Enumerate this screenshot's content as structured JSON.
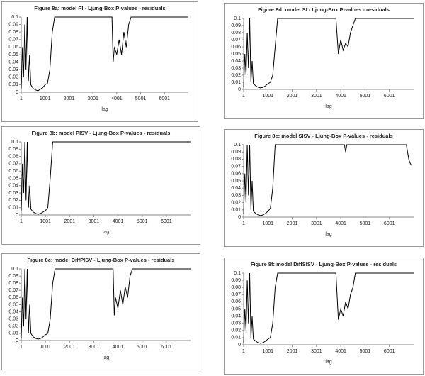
{
  "chart_data": [
    {
      "type": "line",
      "title": "Figure 8a: model PI - Ljung-Box P-values - residuals",
      "xlabel": "lag",
      "color": "#000000",
      "xlim": [
        1,
        7001
      ],
      "ylim": [
        0,
        0.1
      ],
      "xticks": [
        1,
        1001,
        2001,
        3001,
        4001,
        5001,
        6001
      ],
      "yticks": [
        0,
        0.01,
        0.02,
        0.03,
        0.04,
        0.05,
        0.06,
        0.07,
        0.08,
        0.09,
        0.1
      ],
      "x": [
        1,
        50,
        100,
        150,
        200,
        250,
        300,
        350,
        400,
        500,
        600,
        700,
        800,
        900,
        1000,
        1100,
        1200,
        1300,
        1400,
        1500,
        3800,
        3850,
        3900,
        4000,
        4100,
        4200,
        4300,
        4400,
        4500,
        4600,
        4700,
        7000
      ],
      "values": [
        0.005,
        0.06,
        0.02,
        0.09,
        0.03,
        0.1,
        0.015,
        0.05,
        0.01,
        0.005,
        0.003,
        0.002,
        0.004,
        0.006,
        0.01,
        0.012,
        0.03,
        0.08,
        0.1,
        0.1,
        0.1,
        0.04,
        0.06,
        0.05,
        0.07,
        0.05,
        0.08,
        0.06,
        0.09,
        0.1,
        0.1,
        0.1
      ]
    },
    {
      "type": "line",
      "title": "Figure 8d: model SI - Ljung-Box P-values - residuals",
      "xlabel": "lag",
      "color": "#000000",
      "xlim": [
        1,
        7001
      ],
      "ylim": [
        0,
        0.1
      ],
      "xticks": [
        1,
        1001,
        2001,
        3001,
        4001,
        5001,
        6001
      ],
      "yticks": [
        0,
        0.01,
        0.02,
        0.03,
        0.04,
        0.05,
        0.06,
        0.07,
        0.08,
        0.09,
        0.1
      ],
      "x": [
        1,
        50,
        100,
        150,
        200,
        250,
        300,
        350,
        400,
        500,
        600,
        700,
        800,
        900,
        1000,
        1100,
        1200,
        1300,
        1400,
        1500,
        3800,
        3900,
        4000,
        4100,
        4200,
        4300,
        4400,
        4500,
        4600,
        4700,
        4800,
        7000
      ],
      "values": [
        0.003,
        0.05,
        0.02,
        0.08,
        0.03,
        0.1,
        0.01,
        0.04,
        0.008,
        0.005,
        0.003,
        0.002,
        0.003,
        0.005,
        0.008,
        0.01,
        0.02,
        0.06,
        0.1,
        0.1,
        0.1,
        0.05,
        0.07,
        0.055,
        0.065,
        0.06,
        0.08,
        0.09,
        0.1,
        0.1,
        0.1,
        0.1
      ]
    },
    {
      "type": "line",
      "title": "Figure 8b: model PISV - Ljung-Box P-values - residuals",
      "xlabel": "lag",
      "color": "#000000",
      "xlim": [
        1,
        7001
      ],
      "ylim": [
        0,
        0.1
      ],
      "xticks": [
        1,
        1001,
        2001,
        3001,
        4001,
        5001,
        6001
      ],
      "yticks": [
        0,
        0.01,
        0.02,
        0.03,
        0.04,
        0.05,
        0.06,
        0.07,
        0.08,
        0.09,
        0.1
      ],
      "x": [
        1,
        50,
        100,
        150,
        200,
        250,
        300,
        350,
        400,
        500,
        600,
        700,
        800,
        900,
        1000,
        1100,
        1200,
        1300,
        1400,
        7000
      ],
      "values": [
        0.005,
        0.07,
        0.03,
        0.1,
        0.02,
        0.1,
        0.01,
        0.04,
        0.008,
        0.004,
        0.002,
        0.001,
        0.002,
        0.004,
        0.006,
        0.01,
        0.05,
        0.1,
        0.1,
        0.1
      ]
    },
    {
      "type": "line",
      "title": "Figure 8e: model SISV - Ljung-Box P-values - residuals",
      "xlabel": "lag",
      "color": "#000000",
      "xlim": [
        1,
        7001
      ],
      "ylim": [
        0,
        0.1
      ],
      "xticks": [
        1,
        1001,
        2001,
        3001,
        4001,
        5001,
        6001
      ],
      "yticks": [
        0,
        0.01,
        0.02,
        0.03,
        0.04,
        0.05,
        0.06,
        0.07,
        0.08,
        0.09,
        0.1
      ],
      "x": [
        1,
        50,
        100,
        150,
        200,
        250,
        300,
        350,
        400,
        500,
        600,
        700,
        800,
        900,
        1000,
        1100,
        1200,
        1300,
        1400,
        4150,
        4200,
        4250,
        6700,
        6750,
        6800,
        6850,
        6900
      ],
      "values": [
        0.004,
        0.06,
        0.02,
        0.1,
        0.03,
        0.1,
        0.01,
        0.05,
        0.008,
        0.005,
        0.003,
        0.002,
        0.003,
        0.005,
        0.008,
        0.012,
        0.04,
        0.1,
        0.1,
        0.1,
        0.09,
        0.1,
        0.1,
        0.09,
        0.08,
        0.075,
        0.072
      ]
    },
    {
      "type": "line",
      "title": "Figure 8c: model DiffPISV - Ljung-Box P-values - residuals",
      "xlabel": "lag",
      "color": "#000000",
      "xlim": [
        1,
        7001
      ],
      "ylim": [
        0,
        0.1
      ],
      "xticks": [
        1,
        1001,
        2001,
        3001,
        4001,
        5001,
        6001
      ],
      "yticks": [
        0,
        0.01,
        0.02,
        0.03,
        0.04,
        0.05,
        0.06,
        0.07,
        0.08,
        0.09,
        0.1
      ],
      "x": [
        1,
        50,
        100,
        150,
        200,
        250,
        300,
        350,
        400,
        500,
        600,
        700,
        800,
        900,
        1000,
        1100,
        1200,
        1300,
        1400,
        1500,
        3800,
        3850,
        3900,
        4000,
        4100,
        4200,
        4300,
        4400,
        4500,
        4600,
        4700,
        7000
      ],
      "values": [
        0.004,
        0.06,
        0.02,
        0.1,
        0.03,
        0.1,
        0.01,
        0.05,
        0.01,
        0.005,
        0.003,
        0.002,
        0.003,
        0.005,
        0.008,
        0.01,
        0.03,
        0.08,
        0.1,
        0.1,
        0.1,
        0.035,
        0.06,
        0.045,
        0.07,
        0.05,
        0.075,
        0.06,
        0.09,
        0.1,
        0.1,
        0.1
      ]
    },
    {
      "type": "line",
      "title": "Figure 8f: model DiffSISV - Ljung-Box P-values - residuals",
      "xlabel": "lag",
      "color": "#000000",
      "xlim": [
        1,
        7001
      ],
      "ylim": [
        0,
        0.1
      ],
      "xticks": [
        1,
        1001,
        2001,
        3001,
        4001,
        5001,
        6001
      ],
      "yticks": [
        0,
        0.01,
        0.02,
        0.03,
        0.04,
        0.05,
        0.06,
        0.07,
        0.08,
        0.09,
        0.1
      ],
      "x": [
        1,
        50,
        100,
        150,
        200,
        250,
        300,
        350,
        400,
        500,
        600,
        700,
        800,
        900,
        1000,
        1100,
        1200,
        1300,
        1400,
        1500,
        3800,
        3900,
        4000,
        4100,
        4200,
        4300,
        4400,
        4500,
        4600,
        4700,
        4800,
        7000
      ],
      "values": [
        0.003,
        0.05,
        0.02,
        0.09,
        0.03,
        0.1,
        0.01,
        0.04,
        0.008,
        0.005,
        0.003,
        0.002,
        0.003,
        0.005,
        0.008,
        0.01,
        0.03,
        0.08,
        0.1,
        0.1,
        0.1,
        0.035,
        0.05,
        0.04,
        0.06,
        0.05,
        0.07,
        0.08,
        0.1,
        0.1,
        0.1,
        0.1
      ]
    }
  ]
}
